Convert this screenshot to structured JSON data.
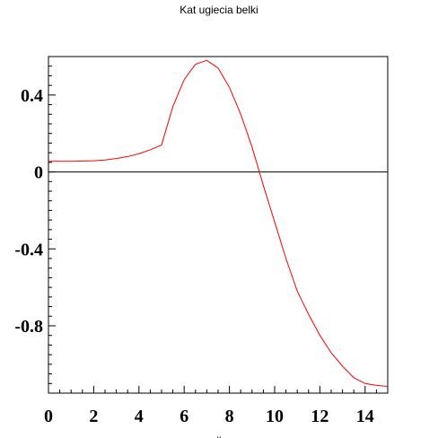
{
  "chart_data": {
    "type": "line",
    "title": "Kat ugiecia belki",
    "xlabel": "x",
    "ylabel": "",
    "xlim": [
      0,
      15
    ],
    "ylim": [
      -1.15,
      0.6
    ],
    "x_ticks": [
      0,
      2,
      4,
      6,
      8,
      10,
      12,
      14
    ],
    "x_tick_labels": [
      "0",
      "2",
      "4",
      "6",
      "8",
      "10",
      "12",
      "14"
    ],
    "y_ticks": [
      0.4,
      0,
      -0.4,
      -0.8
    ],
    "y_tick_labels": [
      "0.4",
      "0",
      "-0.4",
      "-0.8"
    ],
    "grid": false,
    "zero_line": true,
    "series": [
      {
        "color": "#ff0000",
        "x": [
          0,
          1,
          2,
          2.5,
          3,
          3.5,
          4,
          4.5,
          5,
          5.5,
          6,
          6.5,
          7,
          7.5,
          8,
          8.5,
          9,
          9.5,
          10,
          10.5,
          11,
          11.5,
          12,
          12.5,
          13,
          13.5,
          14,
          14.5,
          15
        ],
        "y": [
          0.055,
          0.055,
          0.058,
          0.062,
          0.07,
          0.08,
          0.095,
          0.115,
          0.14,
          0.34,
          0.48,
          0.56,
          0.58,
          0.54,
          0.44,
          0.3,
          0.13,
          -0.07,
          -0.26,
          -0.45,
          -0.62,
          -0.74,
          -0.85,
          -0.94,
          -1.01,
          -1.07,
          -1.1,
          -1.11,
          -1.115
        ]
      }
    ]
  }
}
